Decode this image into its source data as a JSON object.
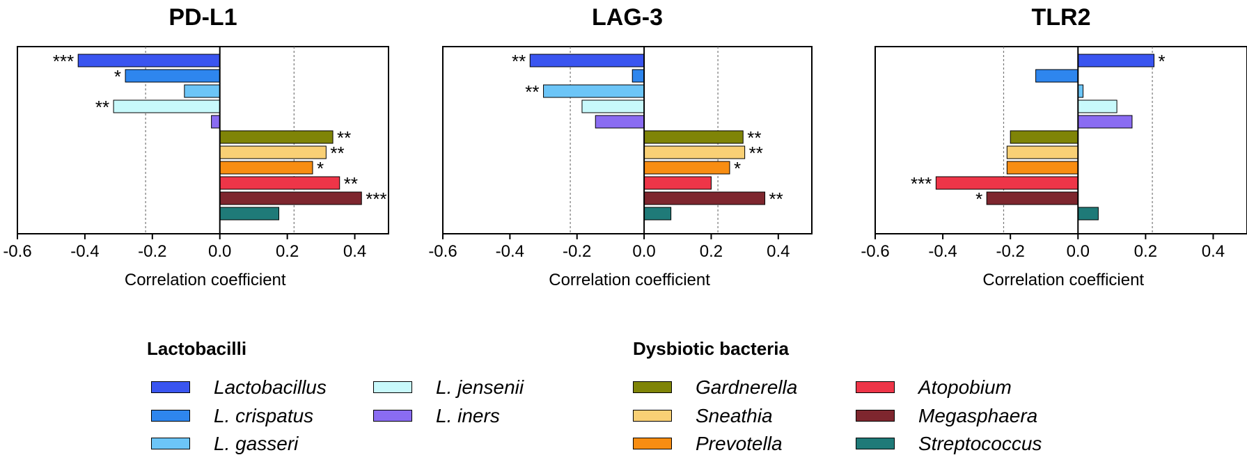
{
  "chart_data": {
    "type": "bar",
    "orientation": "horizontal",
    "xlabel": "Correlation coefficient",
    "xlim": [
      -0.6,
      0.5
    ],
    "xticks": [
      -0.6,
      -0.4,
      -0.2,
      0.0,
      0.2,
      0.4
    ],
    "xtick_labels": [
      "-0.6",
      "-0.4",
      "-0.2",
      "0.0",
      "0.2",
      "0.4"
    ],
    "reference_lines": [
      -0.22,
      0.22
    ],
    "categories": [
      "Lactobacillus",
      "L. crispatus",
      "L. gasseri",
      "L. jensenii",
      "L. iners",
      "Gardnerella",
      "Sneathia",
      "Prevotella",
      "Atopobium",
      "Megasphaera",
      "Streptococcus"
    ],
    "colors": [
      "#3A55F0",
      "#2E86EE",
      "#6CC5F7",
      "#C8F9FB",
      "#8A6CF2",
      "#7F8407",
      "#F9D075",
      "#F88D12",
      "#EE3548",
      "#7E262E",
      "#1F7A78"
    ],
    "panels": [
      {
        "title": "PD-L1",
        "values": [
          -0.42,
          -0.28,
          -0.105,
          -0.315,
          -0.025,
          0.335,
          0.315,
          0.275,
          0.355,
          0.42,
          0.175
        ],
        "significance": [
          "***",
          "*",
          "",
          "**",
          "",
          "**",
          "**",
          "*",
          "**",
          "***",
          ""
        ]
      },
      {
        "title": "LAG-3",
        "values": [
          -0.34,
          -0.035,
          -0.3,
          -0.185,
          -0.145,
          0.295,
          0.3,
          0.255,
          0.2,
          0.36,
          0.08
        ],
        "significance": [
          "**",
          "",
          "**",
          "",
          "",
          "**",
          "**",
          "*",
          "",
          "**",
          ""
        ]
      },
      {
        "title": "TLR2",
        "values": [
          0.225,
          -0.125,
          0.015,
          0.115,
          0.16,
          -0.2,
          -0.21,
          -0.21,
          -0.42,
          -0.27,
          0.06
        ],
        "significance": [
          "*",
          "",
          "",
          "",
          "",
          "",
          "",
          "",
          "***",
          "*",
          ""
        ]
      }
    ]
  },
  "legend": {
    "groups": [
      {
        "title": "Lactobacilli",
        "items": [
          {
            "label": "Lactobacillus",
            "color": "#3A55F0"
          },
          {
            "label": "L. crispatus",
            "color": "#2E86EE"
          },
          {
            "label": "L. gasseri",
            "color": "#6CC5F7"
          },
          {
            "label": "L. jensenii",
            "color": "#C8F9FB"
          },
          {
            "label": "L. iners",
            "color": "#8A6CF2"
          }
        ]
      },
      {
        "title": "Dysbiotic bacteria",
        "items": [
          {
            "label": "Gardnerella",
            "color": "#7F8407"
          },
          {
            "label": "Sneathia",
            "color": "#F9D075"
          },
          {
            "label": "Prevotella",
            "color": "#F88D12"
          },
          {
            "label": "Atopobium",
            "color": "#EE3548"
          },
          {
            "label": "Megasphaera",
            "color": "#7E262E"
          },
          {
            "label": "Streptococcus",
            "color": "#1F7A78"
          }
        ]
      }
    ]
  }
}
